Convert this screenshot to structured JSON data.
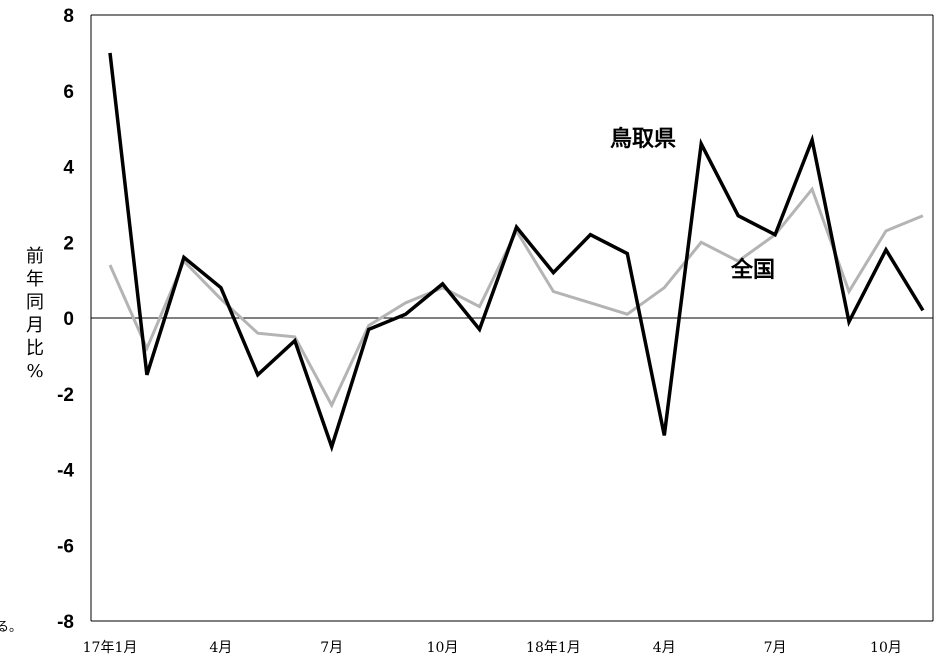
{
  "chart_data": {
    "type": "line",
    "ylabel": "前年同月比%",
    "ylim": [
      -8,
      8
    ],
    "yticks": [
      8,
      6,
      4,
      2,
      0,
      -2,
      -4,
      -6,
      -8
    ],
    "ytick_labels": [
      "8",
      "6",
      "4",
      "2",
      "0",
      "-2",
      "-4",
      "-6",
      "-8"
    ],
    "x_tick_labels": [
      "17年1月",
      "4月",
      "7月",
      "10月",
      "18年1月",
      "4月",
      "7月",
      "10月"
    ],
    "categories": [
      "17年1月",
      "17年2月",
      "17年3月",
      "17年4月",
      "17年5月",
      "17年6月",
      "17年7月",
      "17年8月",
      "17年9月",
      "17年10月",
      "17年11月",
      "17年12月",
      "18年1月",
      "18年2月",
      "18年3月",
      "18年4月",
      "18年5月",
      "18年6月",
      "18年7月",
      "18年8月",
      "18年9月",
      "18年10月",
      "18年11月"
    ],
    "grid": false,
    "series": [
      {
        "name": "鳥取県",
        "color": "#000000",
        "values": [
          7.0,
          -1.5,
          1.6,
          0.8,
          -1.5,
          -0.6,
          -3.4,
          -0.3,
          0.1,
          0.9,
          -0.3,
          2.4,
          1.2,
          2.2,
          1.7,
          -3.1,
          4.6,
          2.7,
          2.2,
          4.7,
          -0.1,
          1.8,
          0.2
        ]
      },
      {
        "name": "全国",
        "color": "#b4b4b4",
        "values": [
          1.4,
          -0.8,
          1.5,
          0.5,
          -0.4,
          -0.5,
          -2.3,
          -0.2,
          0.4,
          0.8,
          0.3,
          2.3,
          0.7,
          0.4,
          0.1,
          0.8,
          2.0,
          1.5,
          2.2,
          3.4,
          0.7,
          2.3,
          2.7
        ]
      }
    ]
  },
  "fragment_text": "る。"
}
